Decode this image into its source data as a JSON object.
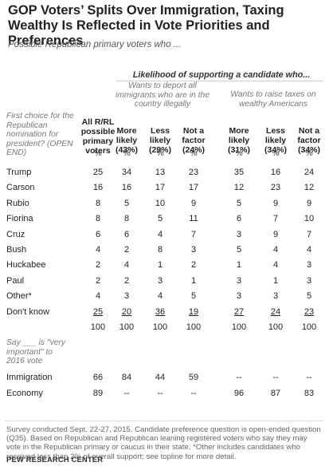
{
  "title": "GOP Voters’ Splits Over Immigration, Taxing Wealthy Is Reflected in Vote Priorities and Preferences",
  "subtitle": "Possible Republican primary voters who ...",
  "super_header": "Likelihood of supporting a candidate who...",
  "group1_header": "Wants to deport all immigrants who are in the country illegally",
  "group2_header": "Wants to raise taxes on wealthy Americans",
  "row_header": "First choice for the Republican nomination for president? (OPEN END)",
  "section2_header": "Say ___ is \"very important\" to 2016 vote",
  "col_headers": [
    "All R/RL possible primary voters",
    "More likely (43%)",
    "Less likely (29%)",
    "Not a factor (24%)",
    "More likely (31%)",
    "Less likely (34%)",
    "Not a factor (34%)"
  ],
  "pct_row": [
    "%",
    "%",
    "%",
    "%",
    "%",
    "%",
    "%"
  ],
  "chart_data": {
    "type": "table",
    "columns": [
      "All R/RL possible primary voters",
      "Deport: More likely (43%)",
      "Deport: Less likely (29%)",
      "Deport: Not a factor (24%)",
      "Raise taxes: More likely (31%)",
      "Raise taxes: Less likely (34%)",
      "Raise taxes: Not a factor (34%)"
    ],
    "rows": [
      {
        "label": "Trump",
        "values": [
          "25",
          "34",
          "13",
          "23",
          "35",
          "16",
          "24"
        ]
      },
      {
        "label": "Carson",
        "values": [
          "16",
          "16",
          "17",
          "17",
          "12",
          "23",
          "12"
        ]
      },
      {
        "label": "Rubio",
        "values": [
          "8",
          "5",
          "10",
          "9",
          "5",
          "9",
          "9"
        ]
      },
      {
        "label": "Fiorina",
        "values": [
          "8",
          "8",
          "5",
          "11",
          "6",
          "7",
          "10"
        ]
      },
      {
        "label": "Cruz",
        "values": [
          "6",
          "6",
          "4",
          "7",
          "3",
          "9",
          "7"
        ]
      },
      {
        "label": "Bush",
        "values": [
          "4",
          "2",
          "8",
          "3",
          "5",
          "4",
          "4"
        ]
      },
      {
        "label": "Huckabee",
        "values": [
          "2",
          "4",
          "1",
          "2",
          "1",
          "4",
          "3"
        ]
      },
      {
        "label": "Paul",
        "values": [
          "2",
          "2",
          "3",
          "1",
          "3",
          "1",
          "3"
        ]
      },
      {
        "label": "Other*",
        "values": [
          "4",
          "3",
          "4",
          "5",
          "3",
          "3",
          "5"
        ]
      },
      {
        "label": "Don't know",
        "values": [
          "25",
          "20",
          "36",
          "19",
          "27",
          "24",
          "23"
        ]
      },
      {
        "label": "",
        "values": [
          "100",
          "100",
          "100",
          "100",
          "100",
          "100",
          "100"
        ]
      }
    ],
    "rows2": [
      {
        "label": "Immigration",
        "values": [
          "66",
          "84",
          "44",
          "59",
          "--",
          "--",
          "--"
        ]
      },
      {
        "label": "Economy",
        "values": [
          "89",
          "--",
          "--",
          "--",
          "96",
          "87",
          "83"
        ]
      }
    ]
  },
  "footnote": "Survey conducted Sept. 22-27, 2015. Candidate preference question is open-ended question (Q35). Based on Republican and Republican leaning registered voters who say they may vote in the Republican primary or caucus in their state. *Other includes candidates who received less than 2% of overall support; see topline for more detail.",
  "source": "PEW RESEARCH CENTER"
}
